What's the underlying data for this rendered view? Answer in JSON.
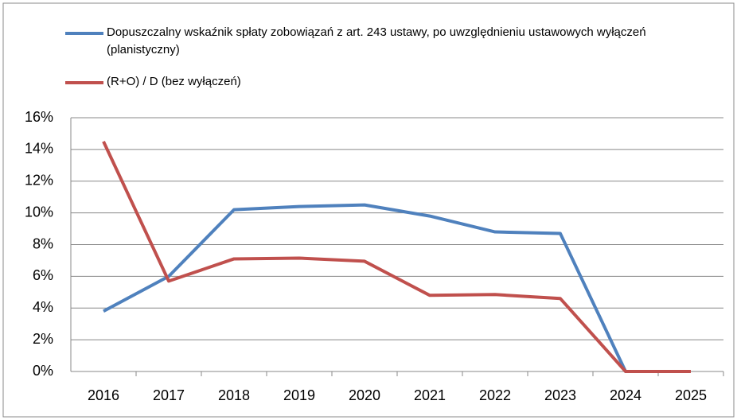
{
  "chart_data": {
    "type": "line",
    "categories": [
      "2016",
      "2017",
      "2018",
      "2019",
      "2020",
      "2021",
      "2022",
      "2023",
      "2024",
      "2025"
    ],
    "series": [
      {
        "name": "Dopuszczalny wskaźnik spłaty zobowiązań z art. 243 ustawy, po uwzględnieniu ustawowych wyłączeń (planistyczny)",
        "color": "#4f81bd",
        "values": [
          3.8,
          6.0,
          10.2,
          10.4,
          10.5,
          9.8,
          8.8,
          8.7,
          0,
          0
        ]
      },
      {
        "name": "(R+O) / D (bez wyłączeń)",
        "color": "#c0504d",
        "values": [
          14.5,
          5.7,
          7.1,
          7.15,
          6.95,
          4.8,
          4.85,
          4.6,
          0,
          0
        ]
      }
    ],
    "ylim": [
      0,
      16
    ],
    "yticks": [
      {
        "value": 0,
        "label": "0%"
      },
      {
        "value": 2,
        "label": "2%"
      },
      {
        "value": 4,
        "label": "4%"
      },
      {
        "value": 6,
        "label": "6%"
      },
      {
        "value": 8,
        "label": "8%"
      },
      {
        "value": 10,
        "label": "10%"
      },
      {
        "value": 12,
        "label": "12%"
      },
      {
        "value": 14,
        "label": "14%"
      },
      {
        "value": 16,
        "label": "16%"
      }
    ],
    "grid": true,
    "legend": "top"
  }
}
